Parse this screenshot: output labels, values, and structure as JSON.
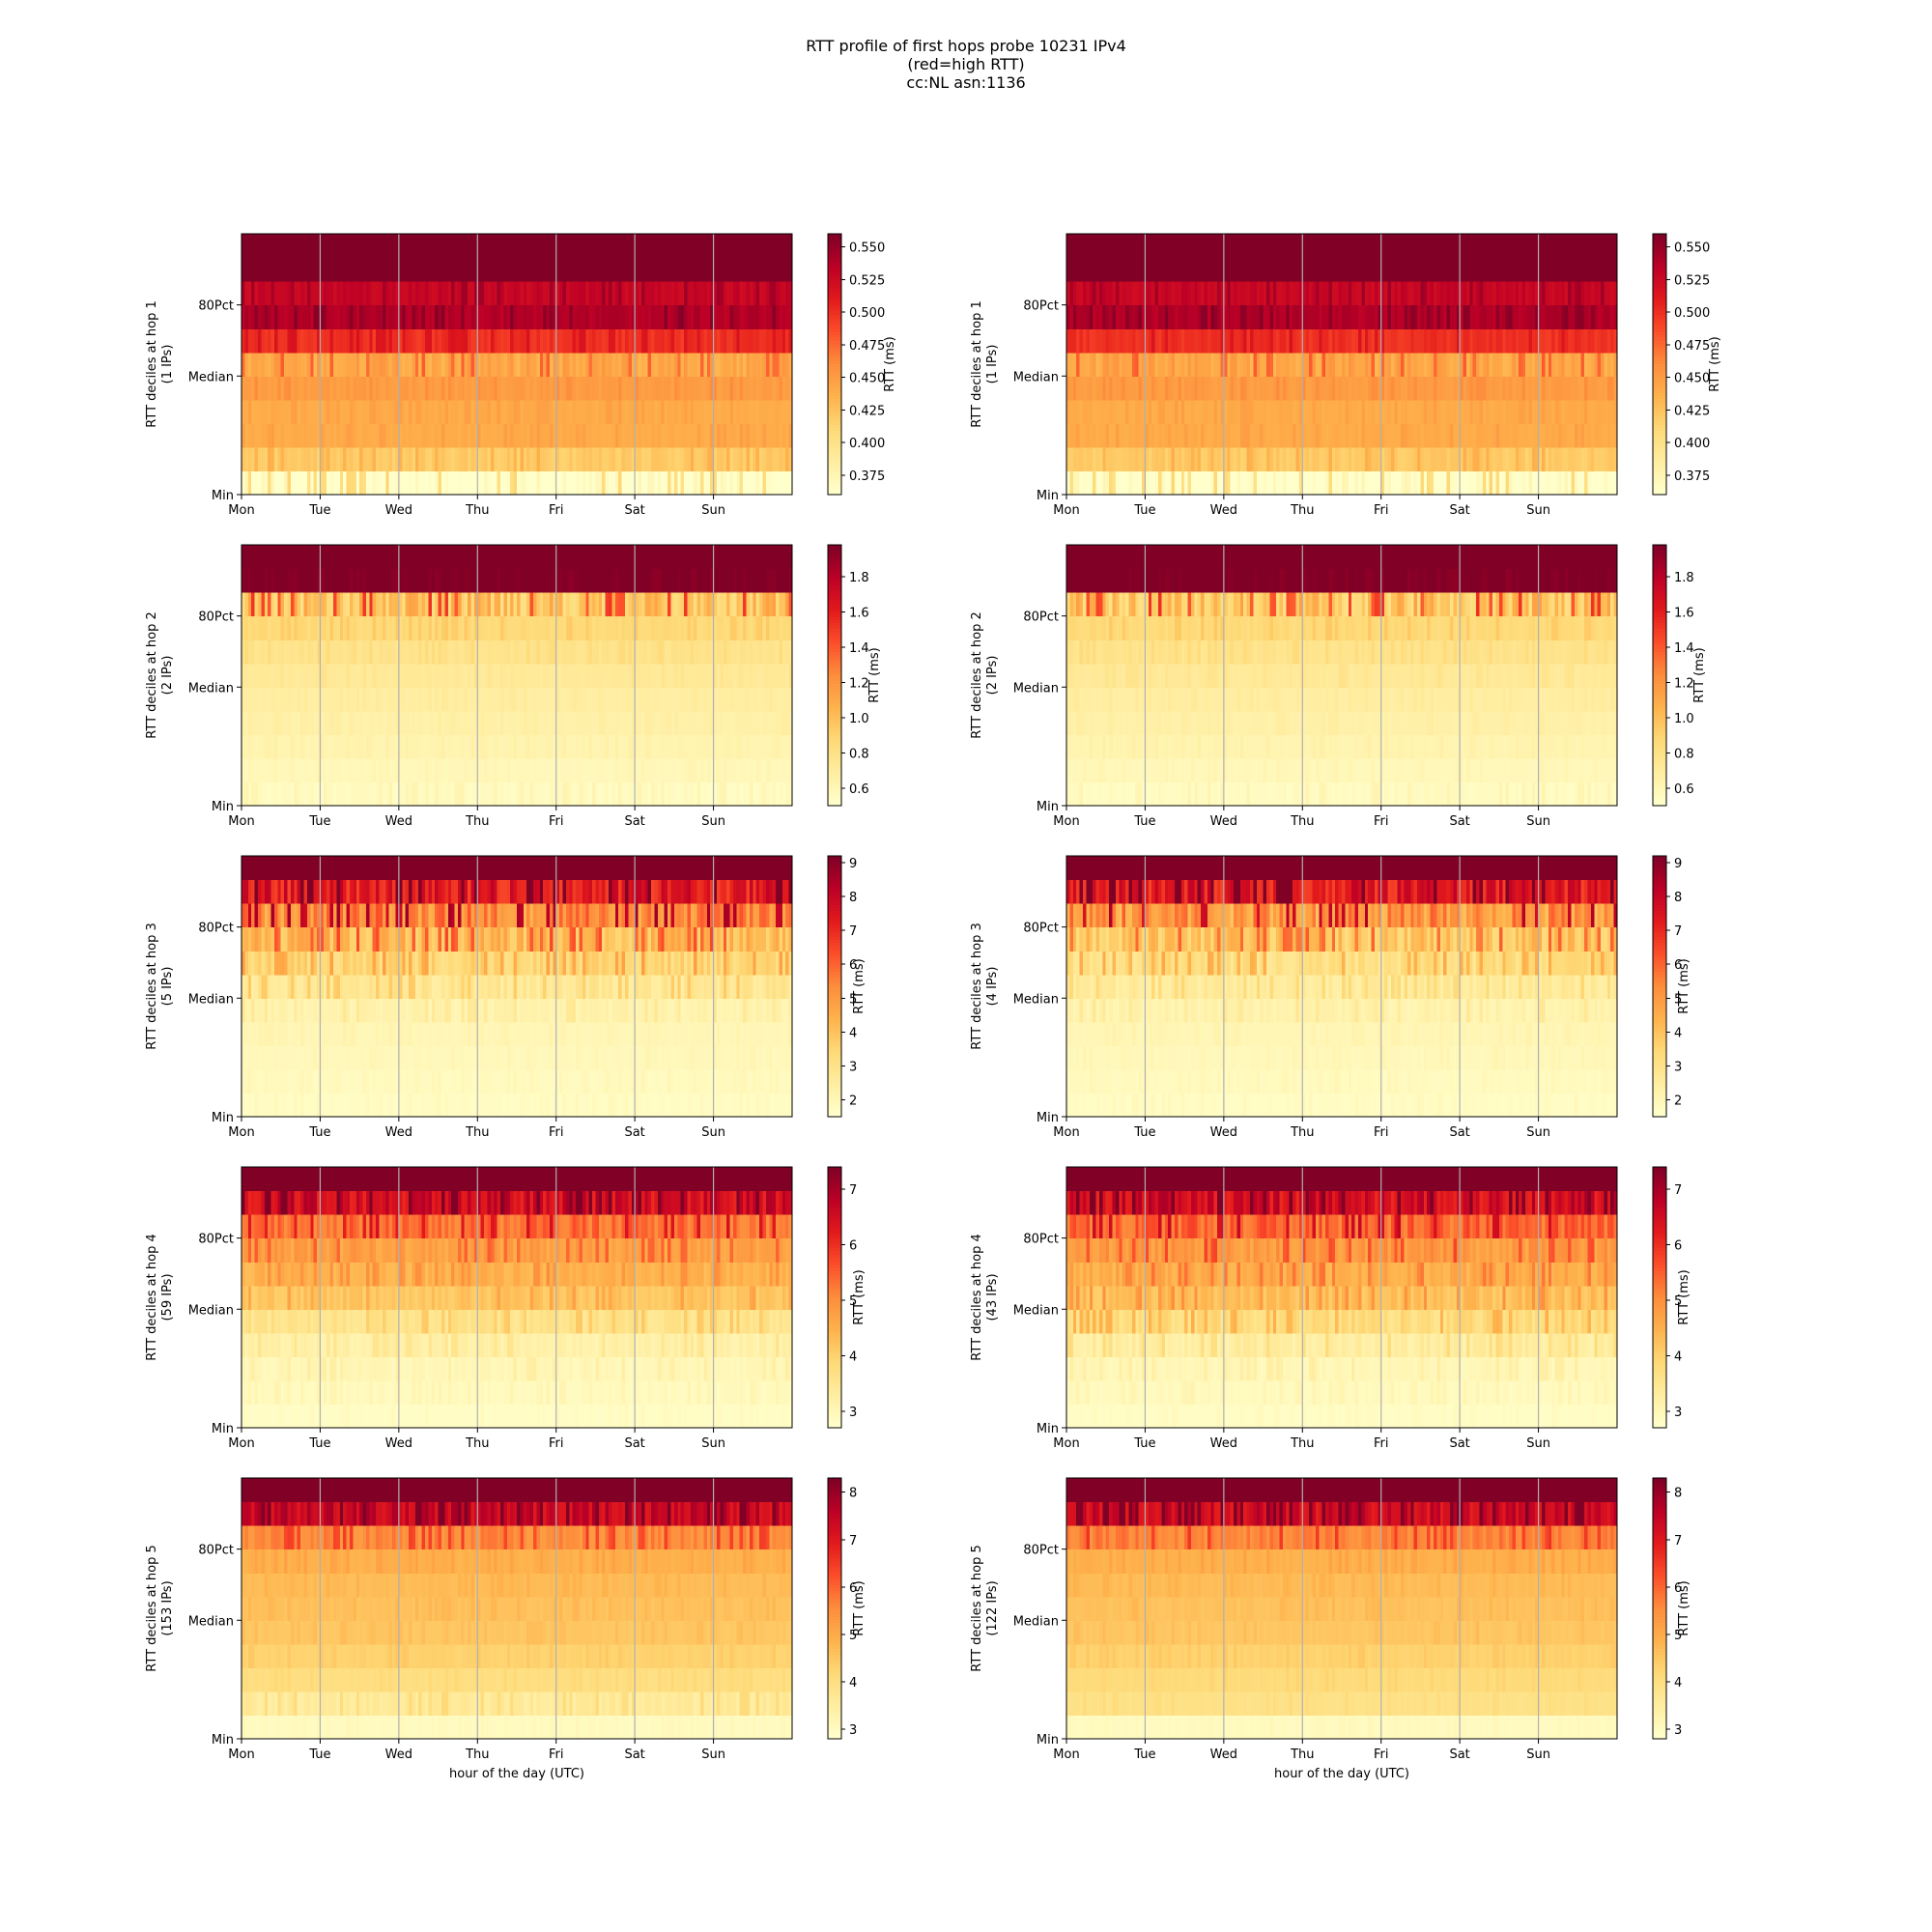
{
  "title_lines": [
    "RTT profile of first hops probe 10231 IPv4",
    "(red=high RTT)",
    "cc:NL asn:1136"
  ],
  "colormap": [
    "#ffffcc",
    "#ffeda0",
    "#fed976",
    "#feb24c",
    "#fd8d3c",
    "#fc4e2a",
    "#e31a1c",
    "#bd0026",
    "#800026"
  ],
  "chart_data": [
    {
      "type": "heatmap",
      "column": "left",
      "hop": 1,
      "ylabel": "RTT deciles at hop 1",
      "ips": "(1 IPs)",
      "xticks": [
        "Mon",
        "Tue",
        "Wed",
        "Thu",
        "Fri",
        "Sat",
        "Sun"
      ],
      "yticks": [
        "80Pct",
        "Median",
        "Min"
      ],
      "cbar_label": "RTT (ms)",
      "cbar_ticks": [
        "0.550",
        "0.525",
        "0.500",
        "0.475",
        "0.450",
        "0.425",
        "0.400",
        "0.375"
      ],
      "vmin": 0.36,
      "vmax": 0.56,
      "band_base": [
        0.36,
        0.42,
        0.44,
        0.44,
        0.45,
        0.445,
        0.5,
        0.54,
        0.53,
        0.56,
        0.56
      ],
      "noise": [
        0.03,
        0.01,
        0.005,
        0.005,
        0.006,
        0.02,
        0.01,
        0.01,
        0.01,
        0,
        0
      ]
    },
    {
      "type": "heatmap",
      "column": "right",
      "hop": 1,
      "ylabel": "RTT deciles at hop 1",
      "ips": "(1 IPs)",
      "xticks": [
        "Mon",
        "Tue",
        "Wed",
        "Thu",
        "Fri",
        "Sat",
        "Sun"
      ],
      "yticks": [
        "80Pct",
        "Median",
        "Min"
      ],
      "cbar_label": "RTT (ms)",
      "cbar_ticks": [
        "0.550",
        "0.525",
        "0.500",
        "0.475",
        "0.450",
        "0.425",
        "0.400",
        "0.375"
      ],
      "vmin": 0.36,
      "vmax": 0.56,
      "band_base": [
        0.36,
        0.42,
        0.44,
        0.44,
        0.45,
        0.445,
        0.5,
        0.54,
        0.53,
        0.56,
        0.56
      ],
      "noise": [
        0.03,
        0.01,
        0.005,
        0.005,
        0.006,
        0.02,
        0.01,
        0.01,
        0.01,
        0,
        0
      ]
    },
    {
      "type": "heatmap",
      "column": "left",
      "hop": 2,
      "ylabel": "RTT deciles at hop 2",
      "ips": "(2 IPs)",
      "xticks": [
        "Mon",
        "Tue",
        "Wed",
        "Thu",
        "Fri",
        "Sat",
        "Sun"
      ],
      "yticks": [
        "80Pct",
        "Median",
        "Min"
      ],
      "cbar_label": "RTT (ms)",
      "cbar_ticks": [
        "1.8",
        "1.6",
        "1.4",
        "1.2",
        "1.0",
        "0.8",
        "0.6"
      ],
      "vmin": 0.5,
      "vmax": 1.98,
      "band_base": [
        0.55,
        0.58,
        0.62,
        0.65,
        0.68,
        0.72,
        0.78,
        0.86,
        1.0,
        2.0,
        2.0
      ],
      "noise": [
        0.04,
        0.02,
        0.02,
        0.02,
        0.02,
        0.03,
        0.04,
        0.05,
        0.3,
        0.1,
        0
      ]
    },
    {
      "type": "heatmap",
      "column": "right",
      "hop": 2,
      "ylabel": "RTT deciles at hop 2",
      "ips": "(2 IPs)",
      "xticks": [
        "Mon",
        "Tue",
        "Wed",
        "Thu",
        "Fri",
        "Sat",
        "Sun"
      ],
      "yticks": [
        "80Pct",
        "Median",
        "Min"
      ],
      "cbar_label": "RTT (ms)",
      "cbar_ticks": [
        "1.8",
        "1.6",
        "1.4",
        "1.2",
        "1.0",
        "0.8",
        "0.6"
      ],
      "vmin": 0.5,
      "vmax": 1.98,
      "band_base": [
        0.55,
        0.58,
        0.62,
        0.65,
        0.68,
        0.72,
        0.78,
        0.86,
        1.0,
        2.0,
        2.0
      ],
      "noise": [
        0.04,
        0.02,
        0.02,
        0.02,
        0.02,
        0.03,
        0.04,
        0.05,
        0.3,
        0.1,
        0
      ]
    },
    {
      "type": "heatmap",
      "column": "left",
      "hop": 3,
      "ylabel": "RTT deciles at hop 3",
      "ips": "(5 IPs)",
      "xticks": [
        "Mon",
        "Tue",
        "Wed",
        "Thu",
        "Fri",
        "Sat",
        "Sun"
      ],
      "yticks": [
        "80Pct",
        "Median",
        "Min"
      ],
      "cbar_label": "RTT (ms)",
      "cbar_ticks": [
        "9",
        "8",
        "7",
        "6",
        "5",
        "4",
        "3",
        "2"
      ],
      "vmin": 1.5,
      "vmax": 9.2,
      "band_base": [
        1.7,
        1.8,
        1.9,
        2.0,
        2.2,
        2.8,
        3.5,
        4.3,
        5.5,
        7.5,
        9.5
      ],
      "noise": [
        0.1,
        0.1,
        0.1,
        0.1,
        0.3,
        0.6,
        0.8,
        1.2,
        1.8,
        1.5,
        0
      ]
    },
    {
      "type": "heatmap",
      "column": "right",
      "hop": 3,
      "ylabel": "RTT deciles at hop 3",
      "ips": "(4 IPs)",
      "xticks": [
        "Mon",
        "Tue",
        "Wed",
        "Thu",
        "Fri",
        "Sat",
        "Sun"
      ],
      "yticks": [
        "80Pct",
        "Median",
        "Min"
      ],
      "cbar_label": "RTT (ms)",
      "cbar_ticks": [
        "9",
        "8",
        "7",
        "6",
        "5",
        "4",
        "3",
        "2"
      ],
      "vmin": 1.5,
      "vmax": 9.2,
      "band_base": [
        1.7,
        1.8,
        1.9,
        2.0,
        2.2,
        2.6,
        3.2,
        4.0,
        5.2,
        7.5,
        9.5
      ],
      "noise": [
        0.1,
        0.1,
        0.1,
        0.1,
        0.3,
        0.5,
        0.8,
        1.2,
        1.8,
        1.5,
        0
      ]
    },
    {
      "type": "heatmap",
      "column": "left",
      "hop": 4,
      "ylabel": "RTT deciles at hop 4",
      "ips": "(59 IPs)",
      "xticks": [
        "Mon",
        "Tue",
        "Wed",
        "Thu",
        "Fri",
        "Sat",
        "Sun"
      ],
      "yticks": [
        "80Pct",
        "Median",
        "Min"
      ],
      "cbar_label": "RTT (ms)",
      "cbar_ticks": [
        "7",
        "6",
        "5",
        "4",
        "3"
      ],
      "vmin": 2.7,
      "vmax": 7.4,
      "band_base": [
        2.8,
        2.9,
        3.0,
        3.2,
        3.6,
        4.2,
        4.5,
        4.8,
        5.4,
        6.6,
        7.5
      ],
      "noise": [
        0.05,
        0.1,
        0.15,
        0.2,
        0.3,
        0.3,
        0.3,
        0.4,
        0.6,
        0.8,
        0
      ]
    },
    {
      "type": "heatmap",
      "column": "right",
      "hop": 4,
      "ylabel": "RTT deciles at hop 4",
      "ips": "(43 IPs)",
      "xticks": [
        "Mon",
        "Tue",
        "Wed",
        "Thu",
        "Fri",
        "Sat",
        "Sun"
      ],
      "yticks": [
        "80Pct",
        "Median",
        "Min"
      ],
      "cbar_label": "RTT (ms)",
      "cbar_ticks": [
        "7",
        "6",
        "5",
        "4",
        "3"
      ],
      "vmin": 2.7,
      "vmax": 7.4,
      "band_base": [
        2.8,
        2.9,
        3.0,
        3.3,
        3.8,
        4.3,
        4.6,
        4.9,
        5.5,
        6.6,
        7.5
      ],
      "noise": [
        0.05,
        0.1,
        0.15,
        0.3,
        0.4,
        0.4,
        0.4,
        0.5,
        0.7,
        0.8,
        0
      ]
    },
    {
      "type": "heatmap",
      "column": "left",
      "hop": 5,
      "ylabel": "RTT deciles at hop 5",
      "ips": "(153 IPs)",
      "xticks": [
        "Mon",
        "Tue",
        "Wed",
        "Thu",
        "Fri",
        "Sat",
        "Sun"
      ],
      "yticks": [
        "80Pct",
        "Median",
        "Min"
      ],
      "cbar_label": "RTT (ms)",
      "cbar_ticks": [
        "8",
        "7",
        "6",
        "5",
        "4",
        "3"
      ],
      "vmin": 2.8,
      "vmax": 8.3,
      "band_base": [
        3.0,
        3.6,
        4.0,
        4.3,
        4.5,
        4.6,
        4.7,
        4.9,
        5.6,
        7.5,
        8.5
      ],
      "noise": [
        0.05,
        0.3,
        0.1,
        0.1,
        0.1,
        0.1,
        0.1,
        0.15,
        0.5,
        0.8,
        0
      ]
    },
    {
      "type": "heatmap",
      "column": "right",
      "hop": 5,
      "ylabel": "RTT deciles at hop 5",
      "ips": "(122 IPs)",
      "xticks": [
        "Mon",
        "Tue",
        "Wed",
        "Thu",
        "Fri",
        "Sat",
        "Sun"
      ],
      "yticks": [
        "80Pct",
        "Median",
        "Min"
      ],
      "cbar_label": "RTT (ms)",
      "cbar_ticks": [
        "8",
        "7",
        "6",
        "5",
        "4",
        "3"
      ],
      "vmin": 2.8,
      "vmax": 8.3,
      "band_base": [
        3.0,
        3.9,
        4.1,
        4.3,
        4.5,
        4.6,
        4.7,
        4.9,
        5.7,
        7.4,
        8.5
      ],
      "noise": [
        0.05,
        0.1,
        0.1,
        0.1,
        0.1,
        0.1,
        0.1,
        0.15,
        0.5,
        0.8,
        0
      ]
    }
  ],
  "xlabel": "hour of the day (UTC)"
}
